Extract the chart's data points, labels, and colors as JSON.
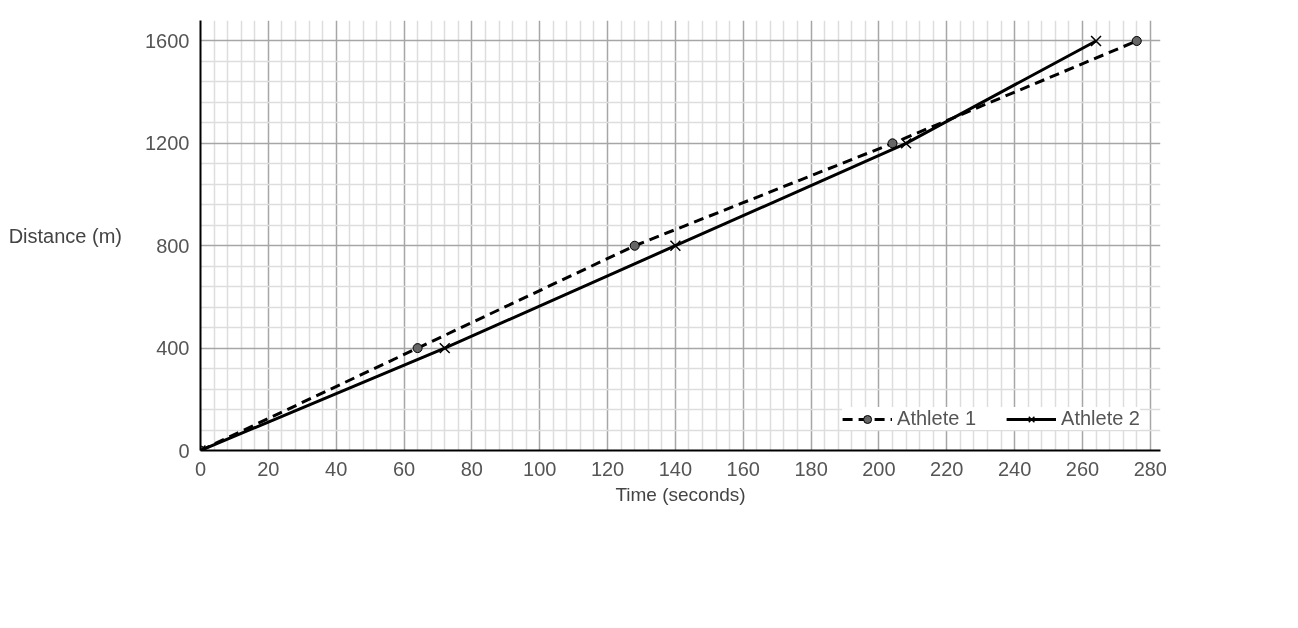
{
  "chart_data": {
    "type": "line",
    "xlabel": "Time (seconds)",
    "ylabel": "Distance (m)",
    "xlim": [
      0,
      283
    ],
    "ylim": [
      0,
      1680
    ],
    "xticks": [
      0,
      20,
      40,
      60,
      80,
      100,
      120,
      140,
      160,
      180,
      200,
      220,
      240,
      260,
      280
    ],
    "yticks": [
      0,
      400,
      800,
      1200,
      1600
    ],
    "grid": true,
    "legend": "bottom right",
    "series": [
      {
        "name": "Athlete 1",
        "color": "#000000",
        "marker": "circle",
        "line_style": "dashed",
        "x": [
          0,
          64,
          128,
          204,
          276
        ],
        "values": [
          0,
          400,
          800,
          1200,
          1600
        ]
      },
      {
        "name": "Athlete 2",
        "color": "#000000",
        "marker": "cross",
        "line_style": "solid",
        "x": [
          0,
          72,
          140,
          208,
          264
        ],
        "values": [
          0,
          400,
          800,
          1200,
          1600
        ]
      }
    ]
  }
}
